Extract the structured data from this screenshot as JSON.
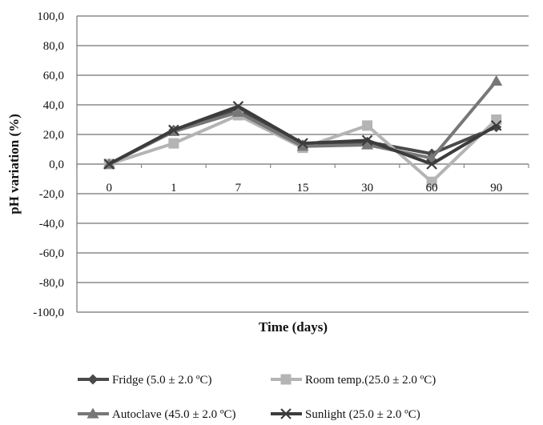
{
  "chart_data": {
    "type": "line",
    "title": "",
    "xlabel": "Time (days)",
    "ylabel": "pH variation (%)",
    "ylim": [
      -100,
      100
    ],
    "yticks": [
      "100,0",
      "80,0",
      "60,0",
      "40,0",
      "20,0",
      "0,0",
      "-20,0",
      "-40,0",
      "-60,0",
      "-80,0",
      "-100,0"
    ],
    "categories": [
      "0",
      "1",
      "7",
      "15",
      "30",
      "60",
      "90"
    ],
    "grid": "horizontal",
    "legend_position": "bottom",
    "series": [
      {
        "name": "Fridge (5.0 ± 2.0 ºC)",
        "marker": "diamond",
        "color": "#4a4a4a",
        "values": [
          0,
          23,
          37,
          13,
          15,
          7,
          25
        ]
      },
      {
        "name": "Room temp.(25.0 ± 2.0 ºC)",
        "marker": "square",
        "color": "#b4b4b4",
        "values": [
          0,
          14,
          33,
          11,
          26,
          -12,
          30
        ]
      },
      {
        "name": "Autoclave (45.0 ± 2.0 ºC)",
        "marker": "triangle",
        "color": "#777777",
        "values": [
          0,
          22,
          35,
          12,
          13,
          4,
          56
        ]
      },
      {
        "name": "Sunlight (25.0 ± 2.0 ºC)",
        "marker": "x",
        "color": "#3c3c3c",
        "values": [
          0,
          23,
          39,
          14,
          16,
          0,
          26
        ]
      }
    ]
  }
}
